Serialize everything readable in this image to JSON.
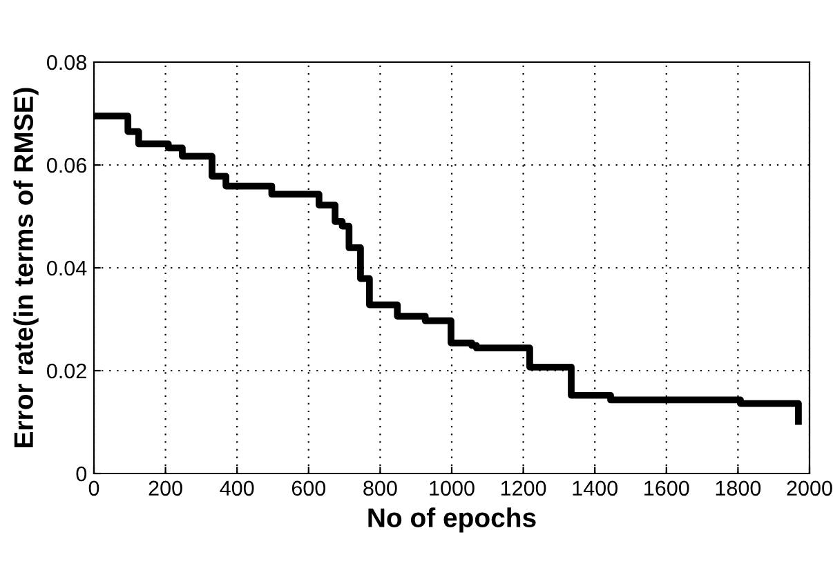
{
  "chart_data": {
    "type": "step",
    "xlabel": "No of epochs",
    "ylabel": "Error rate(in terms of RMSE)",
    "xlim": [
      0,
      2000
    ],
    "ylim": [
      0,
      0.08
    ],
    "xticks": [
      0,
      200,
      400,
      600,
      800,
      1000,
      1200,
      1400,
      1600,
      1800,
      2000
    ],
    "yticks": [
      0,
      0.02,
      0.04,
      0.06,
      0.08
    ],
    "grid": true,
    "series": [
      {
        "color": "#000000",
        "x": [
          0,
          70,
          95,
          125,
          208,
          247,
          305,
          330,
          369,
          427,
          497,
          629,
          674,
          694,
          713,
          745,
          770,
          848,
          926,
          978,
          998,
          1056,
          1069,
          1205,
          1218,
          1321,
          1334,
          1444,
          1807,
          1956,
          1969
        ],
        "values": [
          0.0695,
          0.0695,
          0.0665,
          0.0641,
          0.0633,
          0.0617,
          0.0617,
          0.0578,
          0.0559,
          0.0559,
          0.0543,
          0.0522,
          0.049,
          0.0481,
          0.0439,
          0.0379,
          0.0328,
          0.0306,
          0.0297,
          0.0297,
          0.0254,
          0.0249,
          0.0244,
          0.0244,
          0.0207,
          0.0207,
          0.0152,
          0.0143,
          0.0136,
          0.0136,
          0.0101
        ]
      }
    ]
  }
}
